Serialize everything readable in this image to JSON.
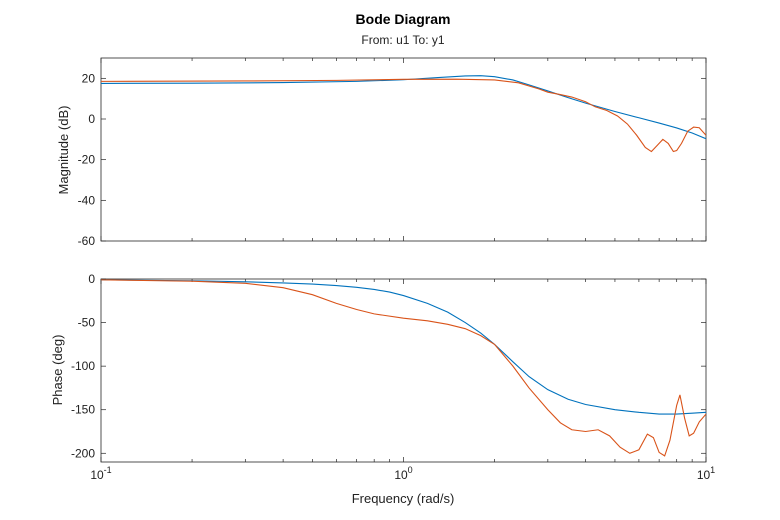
{
  "chart_data": {
    "type": "line",
    "title": "Bode Diagram",
    "subtitle": "From: u1  To: y1",
    "xlabel": "Frequency (rad/s)",
    "xscale": "log",
    "xlim": [
      0.1,
      10
    ],
    "x_ticks": [
      {
        "base": "10",
        "exp": "-1"
      },
      {
        "base": "10",
        "exp": "0"
      },
      {
        "base": "10",
        "exp": "1"
      }
    ],
    "grid": false,
    "colors": {
      "series1": "#0072BD",
      "series2": "#D95319",
      "axes": "#262626"
    },
    "panels": [
      {
        "id": "magnitude",
        "ylabel": "Magnitude (dB)",
        "ylim": [
          -60,
          30
        ],
        "yticks": [
          -60,
          -40,
          -20,
          0,
          20
        ],
        "series": [
          {
            "color": "#0072BD",
            "points": [
              [
                0.1,
                17.5
              ],
              [
                0.2,
                17.6
              ],
              [
                0.4,
                17.9
              ],
              [
                0.7,
                18.5
              ],
              [
                1.0,
                19.3
              ],
              [
                1.3,
                20.4
              ],
              [
                1.6,
                21.2
              ],
              [
                1.8,
                21.3
              ],
              [
                2.0,
                20.8
              ],
              [
                2.3,
                19.2
              ],
              [
                2.6,
                16.8
              ],
              [
                3.0,
                13.8
              ],
              [
                3.5,
                10.5
              ],
              [
                4.0,
                7.8
              ],
              [
                5.0,
                3.7
              ],
              [
                6.0,
                0.6
              ],
              [
                7.0,
                -2.0
              ],
              [
                8.0,
                -4.4
              ],
              [
                9.0,
                -6.9
              ],
              [
                10.0,
                -9.7
              ]
            ]
          },
          {
            "color": "#D95319",
            "points": [
              [
                0.1,
                18.5
              ],
              [
                0.3,
                18.7
              ],
              [
                0.6,
                19.0
              ],
              [
                1.0,
                19.5
              ],
              [
                1.5,
                19.6
              ],
              [
                2.0,
                19.2
              ],
              [
                2.4,
                17.8
              ],
              [
                2.8,
                14.8
              ],
              [
                3.0,
                13.2
              ],
              [
                3.3,
                12.0
              ],
              [
                3.6,
                10.8
              ],
              [
                4.0,
                8.5
              ],
              [
                4.3,
                6.0
              ],
              [
                4.7,
                4.2
              ],
              [
                5.1,
                1.5
              ],
              [
                5.5,
                -2.5
              ],
              [
                5.9,
                -8.0
              ],
              [
                6.3,
                -14.0
              ],
              [
                6.6,
                -16.0
              ],
              [
                6.9,
                -13.0
              ],
              [
                7.2,
                -10.0
              ],
              [
                7.5,
                -12.0
              ],
              [
                7.8,
                -16.0
              ],
              [
                8.0,
                -15.5
              ],
              [
                8.3,
                -12.0
              ],
              [
                8.7,
                -6.0
              ],
              [
                9.1,
                -4.0
              ],
              [
                9.5,
                -4.3
              ],
              [
                10.0,
                -8.0
              ]
            ]
          }
        ]
      },
      {
        "id": "phase",
        "ylabel": "Phase (deg)",
        "ylim": [
          -210,
          0
        ],
        "yticks": [
          -200,
          -150,
          -100,
          -50,
          0
        ],
        "series": [
          {
            "color": "#0072BD",
            "points": [
              [
                0.1,
                -1.0
              ],
              [
                0.2,
                -2.0
              ],
              [
                0.3,
                -3.2
              ],
              [
                0.4,
                -4.5
              ],
              [
                0.5,
                -5.8
              ],
              [
                0.6,
                -7.5
              ],
              [
                0.7,
                -9.5
              ],
              [
                0.8,
                -12.0
              ],
              [
                0.9,
                -15.0
              ],
              [
                1.0,
                -19.0
              ],
              [
                1.2,
                -28.0
              ],
              [
                1.4,
                -38.0
              ],
              [
                1.6,
                -50.0
              ],
              [
                1.8,
                -62.0
              ],
              [
                2.0,
                -75.0
              ],
              [
                2.3,
                -95.0
              ],
              [
                2.6,
                -112.0
              ],
              [
                3.0,
                -127.0
              ],
              [
                3.5,
                -138.0
              ],
              [
                4.0,
                -144.0
              ],
              [
                5.0,
                -150.0
              ],
              [
                6.0,
                -153.0
              ],
              [
                7.0,
                -155.0
              ],
              [
                8.0,
                -155.0
              ],
              [
                9.0,
                -154.0
              ],
              [
                10.0,
                -153.0
              ]
            ]
          },
          {
            "color": "#D95319",
            "points": [
              [
                0.1,
                -1.0
              ],
              [
                0.2,
                -2.5
              ],
              [
                0.3,
                -5.0
              ],
              [
                0.4,
                -10.0
              ],
              [
                0.5,
                -18.0
              ],
              [
                0.6,
                -28.0
              ],
              [
                0.7,
                -35.0
              ],
              [
                0.8,
                -40.0
              ],
              [
                1.0,
                -45.0
              ],
              [
                1.2,
                -48.0
              ],
              [
                1.4,
                -52.0
              ],
              [
                1.6,
                -57.0
              ],
              [
                1.8,
                -65.0
              ],
              [
                2.0,
                -75.0
              ],
              [
                2.3,
                -100.0
              ],
              [
                2.6,
                -125.0
              ],
              [
                3.0,
                -150.0
              ],
              [
                3.3,
                -165.0
              ],
              [
                3.6,
                -173.0
              ],
              [
                4.0,
                -175.0
              ],
              [
                4.4,
                -173.0
              ],
              [
                4.8,
                -180.0
              ],
              [
                5.2,
                -193.0
              ],
              [
                5.6,
                -200.0
              ],
              [
                6.0,
                -196.0
              ],
              [
                6.4,
                -178.0
              ],
              [
                6.7,
                -182.0
              ],
              [
                7.0,
                -199.0
              ],
              [
                7.3,
                -203.0
              ],
              [
                7.6,
                -185.0
              ],
              [
                8.0,
                -145.0
              ],
              [
                8.2,
                -133.0
              ],
              [
                8.5,
                -160.0
              ],
              [
                8.8,
                -180.0
              ],
              [
                9.1,
                -177.0
              ],
              [
                9.5,
                -164.0
              ],
              [
                10.0,
                -155.0
              ]
            ]
          }
        ]
      }
    ]
  }
}
